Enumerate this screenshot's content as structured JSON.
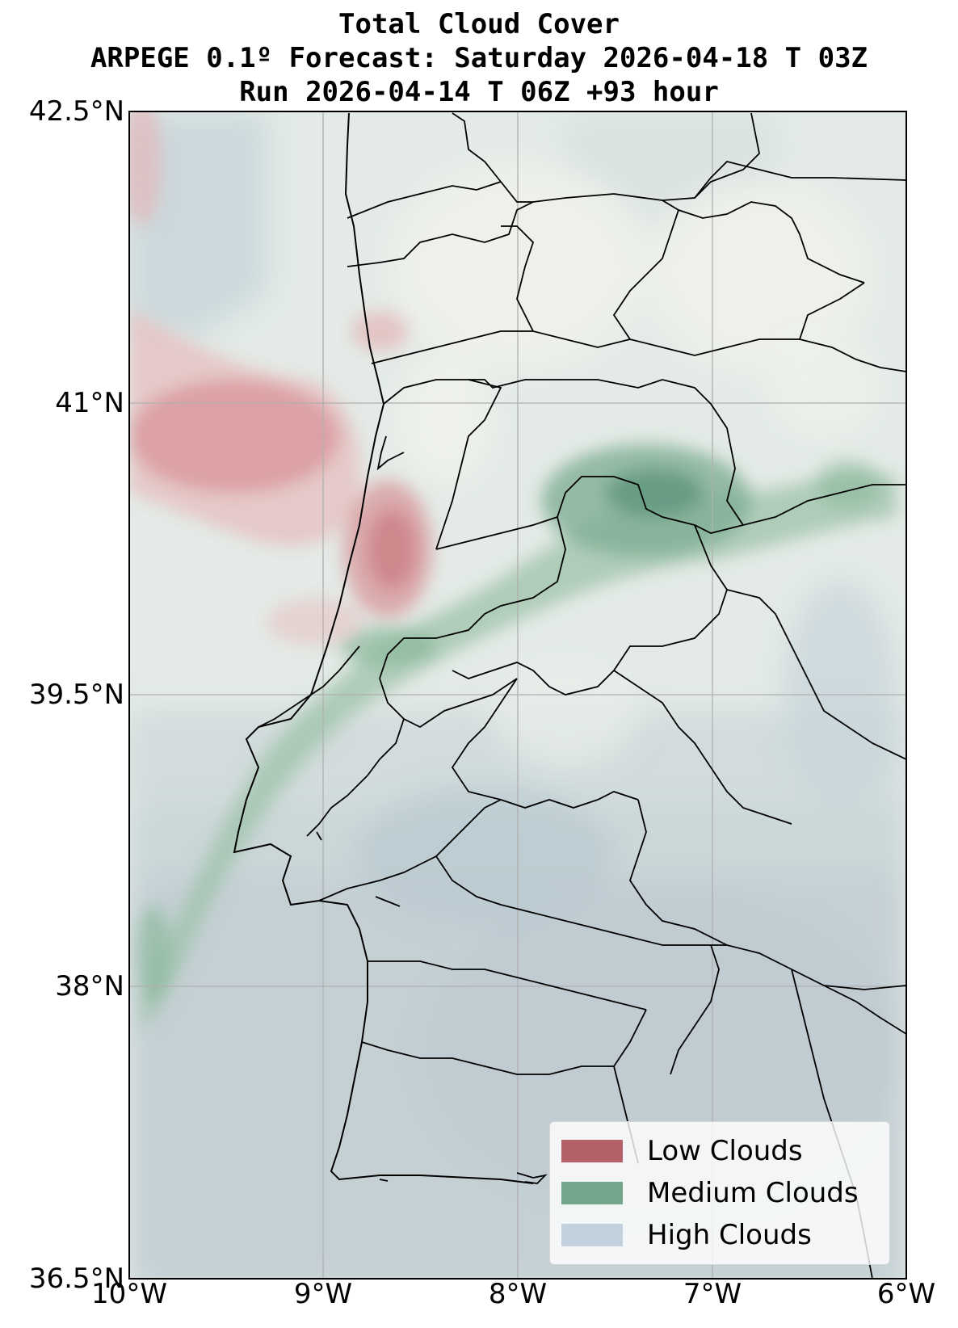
{
  "title": {
    "line1": "Total Cloud Cover",
    "line2": "ARPEGE 0.1º Forecast: Saturday 2026-04-18 T 03Z",
    "line3": "Run 2026-04-14 T 06Z +93 hour"
  },
  "axes": {
    "y_ticks": [
      "42.5°N",
      "41°N",
      "39.5°N",
      "38°N",
      "36.5°N"
    ],
    "x_ticks": [
      "10°W",
      "9°W",
      "8°W",
      "7°W",
      "6°W"
    ]
  },
  "legend": {
    "items": [
      {
        "label": "Low Clouds",
        "color": "#b36069"
      },
      {
        "label": "Medium Clouds",
        "color": "#73a58a"
      },
      {
        "label": "High Clouds",
        "color": "#c3d0de"
      }
    ]
  },
  "colors": {
    "land_base": "#e9eee8",
    "high_cloud": "#c3d0de",
    "medium_cloud": "#73a58a",
    "low_cloud": "#b36069",
    "gridline": "#b0b0b0",
    "coastline": "#000000"
  }
}
